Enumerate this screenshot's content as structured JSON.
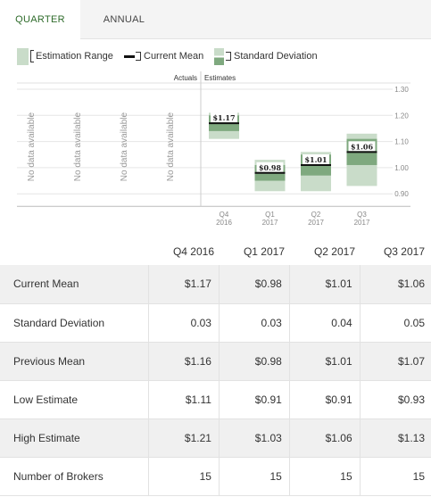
{
  "tabs": [
    {
      "label": "QUARTER",
      "active": true
    },
    {
      "label": "ANNUAL",
      "active": false
    }
  ],
  "legend": {
    "estimation_range": "Estimation Range",
    "current_mean": "Current Mean",
    "standard_deviation": "Standard Deviation"
  },
  "colors": {
    "accent": "#2e6b2a",
    "range_fill": "#c9dcc9",
    "std_fill": "#7fa97f",
    "mean_line": "#111111"
  },
  "chart_data": {
    "type": "box",
    "section_labels": [
      "Actuals",
      "Estimates"
    ],
    "no_data_label": "No data available",
    "no_data_columns": 4,
    "y_ticks": [
      "1.30",
      "1.20",
      "1.10",
      "1.00",
      "0.90"
    ],
    "ylim": [
      0.9,
      1.3
    ],
    "grid": true,
    "periods": [
      {
        "line1": "Q4",
        "line2": "2016",
        "low": 1.11,
        "high": 1.21,
        "mean": 1.17,
        "std": 0.03,
        "mean_label": "$1.17"
      },
      {
        "line1": "Q1",
        "line2": "2017",
        "low": 0.91,
        "high": 1.03,
        "mean": 0.98,
        "std": 0.03,
        "mean_label": "$0.98"
      },
      {
        "line1": "Q2",
        "line2": "2017",
        "low": 0.91,
        "high": 1.06,
        "mean": 1.01,
        "std": 0.04,
        "mean_label": "$1.01"
      },
      {
        "line1": "Q3",
        "line2": "2017",
        "low": 0.93,
        "high": 1.13,
        "mean": 1.06,
        "std": 0.05,
        "mean_label": "$1.06"
      }
    ]
  },
  "table": {
    "headers": [
      "Q4 2016",
      "Q1 2017",
      "Q2 2017",
      "Q3 2017"
    ],
    "rows": [
      {
        "label": "Current Mean",
        "values": [
          "$1.17",
          "$0.98",
          "$1.01",
          "$1.06"
        ]
      },
      {
        "label": "Standard Deviation",
        "values": [
          "0.03",
          "0.03",
          "0.04",
          "0.05"
        ]
      },
      {
        "label": "Previous Mean",
        "values": [
          "$1.16",
          "$0.98",
          "$1.01",
          "$1.07"
        ]
      },
      {
        "label": "Low Estimate",
        "values": [
          "$1.11",
          "$0.91",
          "$0.91",
          "$0.93"
        ]
      },
      {
        "label": "High Estimate",
        "values": [
          "$1.21",
          "$1.03",
          "$1.06",
          "$1.13"
        ]
      },
      {
        "label": "Number of Brokers",
        "values": [
          "15",
          "15",
          "15",
          "15"
        ]
      }
    ]
  }
}
